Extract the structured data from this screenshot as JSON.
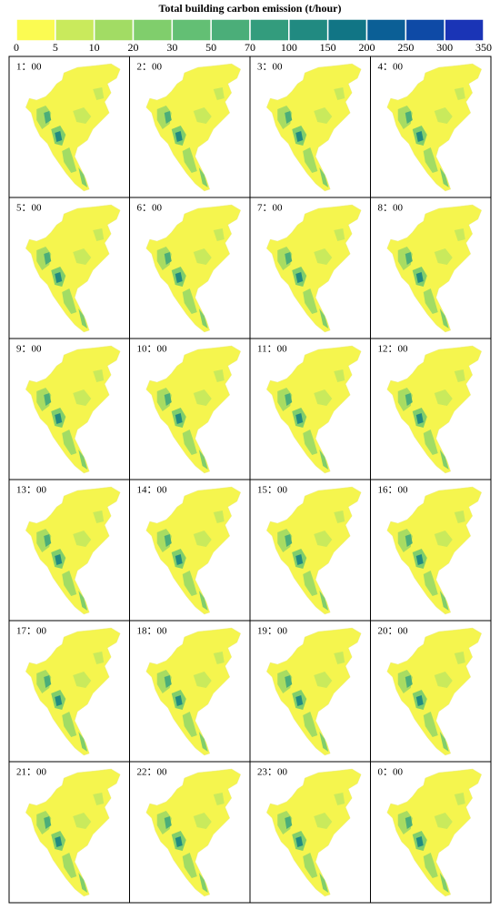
{
  "legend": {
    "title": "Total building carbon emission (t/hour)",
    "ticks": [
      0,
      5,
      10,
      20,
      30,
      50,
      70,
      100,
      150,
      200,
      250,
      300,
      350
    ],
    "colors": [
      "#fbfb52",
      "#c9ea5c",
      "#a2dc64",
      "#80ce6c",
      "#63bf74",
      "#4bae79",
      "#339c7d",
      "#218a81",
      "#117585",
      "#0b5f96",
      "#0e4aa6",
      "#1a34b6"
    ]
  },
  "panels": [
    {
      "label": "1：00"
    },
    {
      "label": "2：00"
    },
    {
      "label": "3：00"
    },
    {
      "label": "4：00"
    },
    {
      "label": "5：00"
    },
    {
      "label": "6：00"
    },
    {
      "label": "7：00"
    },
    {
      "label": "8：00"
    },
    {
      "label": "9：00"
    },
    {
      "label": "10：00"
    },
    {
      "label": "11：00"
    },
    {
      "label": "12：00"
    },
    {
      "label": "13：00"
    },
    {
      "label": "14：00"
    },
    {
      "label": "15：00"
    },
    {
      "label": "16：00"
    },
    {
      "label": "17：00"
    },
    {
      "label": "18：00"
    },
    {
      "label": "19：00"
    },
    {
      "label": "20：00"
    },
    {
      "label": "21：00"
    },
    {
      "label": "22：00"
    },
    {
      "label": "23：00"
    },
    {
      "label": "0：00"
    }
  ]
}
